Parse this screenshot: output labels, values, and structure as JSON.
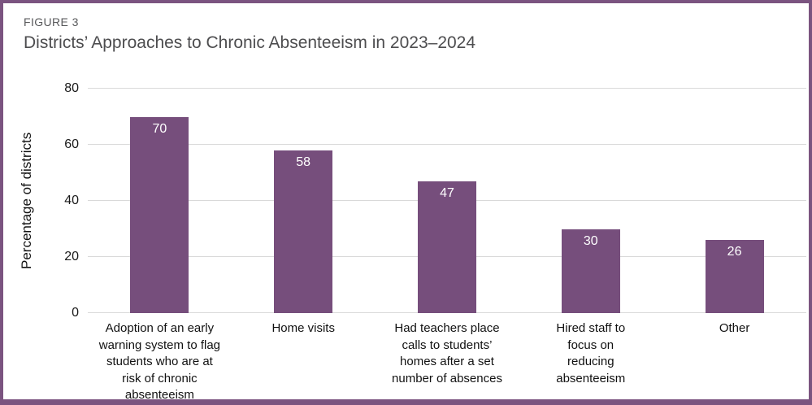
{
  "figure": {
    "label": "FIGURE 3",
    "title": "Districts’ Approaches to Chronic Absenteeism in 2023–2024"
  },
  "colors": {
    "bar": "#764E7C",
    "frame_border": "#7B5480",
    "gridline": "#D9D9D9",
    "figure_label_text": "#58595B",
    "title_text": "#4D4D4F",
    "axis_text": "#1A1A1A",
    "bar_value_text": "#FFFFFF"
  },
  "chart_data": {
    "type": "bar",
    "title": "Districts’ Approaches to Chronic Absenteeism in 2023–2024",
    "categories": [
      "Adoption of an early warning system to flag students who are at risk of chronic absenteeism",
      "Home visits",
      "Had teachers place calls to students’ homes after a set number of absences",
      "Hired staff to focus on reducing absenteeism",
      "Other"
    ],
    "category_lines": [
      [
        "Adoption of an early",
        "warning system to flag",
        "students who are at",
        "risk of chronic",
        "absenteeism"
      ],
      [
        "Home visits"
      ],
      [
        "Had teachers place",
        "calls to students’",
        "homes after a set",
        "number of absences"
      ],
      [
        "Hired staff to",
        "focus on",
        "reducing",
        "absenteeism"
      ],
      [
        "Other"
      ]
    ],
    "values": [
      70,
      58,
      47,
      30,
      26
    ],
    "xlabel": "",
    "ylabel": "Percentage of districts",
    "ylim": [
      0,
      80
    ],
    "yticks": [
      0,
      20,
      40,
      60,
      80
    ],
    "grid": "horizontal",
    "legend": "none",
    "bar_value_labels": [
      70,
      58,
      47,
      30,
      26
    ]
  }
}
